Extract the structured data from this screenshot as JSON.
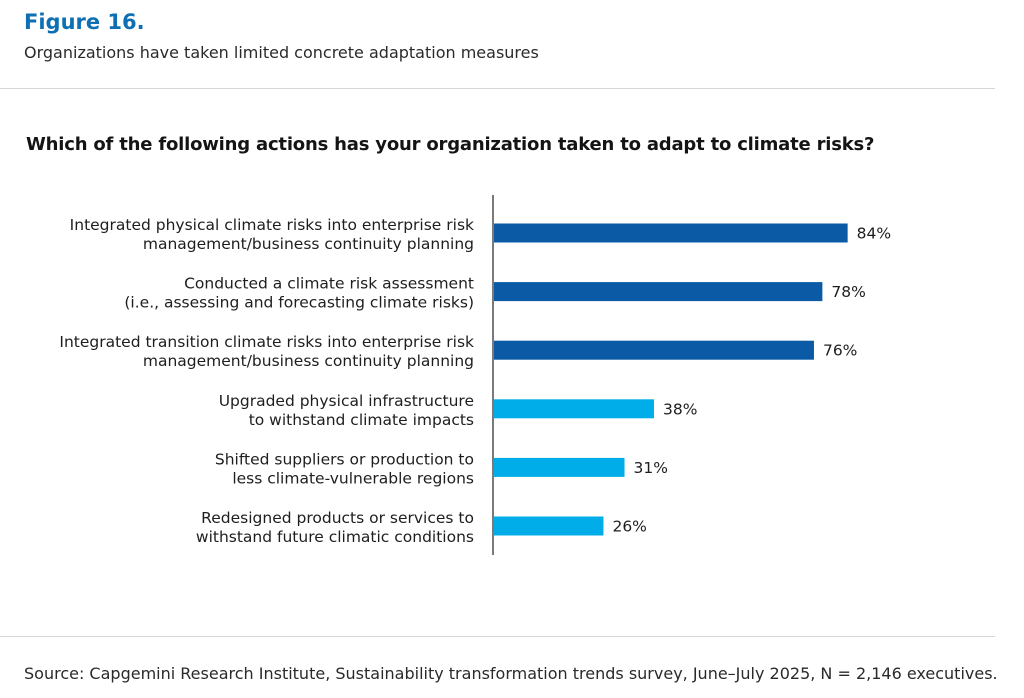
{
  "figure": {
    "label": "Figure 16.",
    "subtitle": "Organizations have taken limited concrete adaptation measures"
  },
  "source": "Source: Capgemini Research Institute, Sustainability transformation trends survey, June–July 2025, N = 2,146 executives.",
  "colors": {
    "figure_label": "#0e70b3",
    "bar_dark": "#0a5aa6",
    "bar_light": "#00ade8",
    "axis": "#333333"
  },
  "chart_data": {
    "type": "bar",
    "orientation": "horizontal",
    "title": "Which of the following actions has your organization taken to adapt to climate risks?",
    "categories": [
      [
        "Integrated physical climate risks into enterprise risk",
        "management/business continuity planning"
      ],
      [
        "Conducted a climate risk assessment",
        "(i.e., assessing and forecasting climate risks)"
      ],
      [
        "Integrated transition climate risks into enterprise risk",
        "management/business continuity planning"
      ],
      [
        "Upgraded physical infrastructure",
        "to withstand climate impacts"
      ],
      [
        "Shifted suppliers or production to",
        "less climate-vulnerable regions"
      ],
      [
        "Redesigned products or services to",
        "withstand future climatic conditions"
      ]
    ],
    "values": [
      84,
      78,
      76,
      38,
      31,
      26
    ],
    "value_labels": [
      "84%",
      "78%",
      "76%",
      "38%",
      "31%",
      "26%"
    ],
    "bar_color_keys": [
      "bar_dark",
      "bar_dark",
      "bar_dark",
      "bar_light",
      "bar_light",
      "bar_light"
    ],
    "xlim": [
      0,
      100
    ],
    "xlabel": "",
    "ylabel": "",
    "grid": false,
    "legend": "none"
  }
}
